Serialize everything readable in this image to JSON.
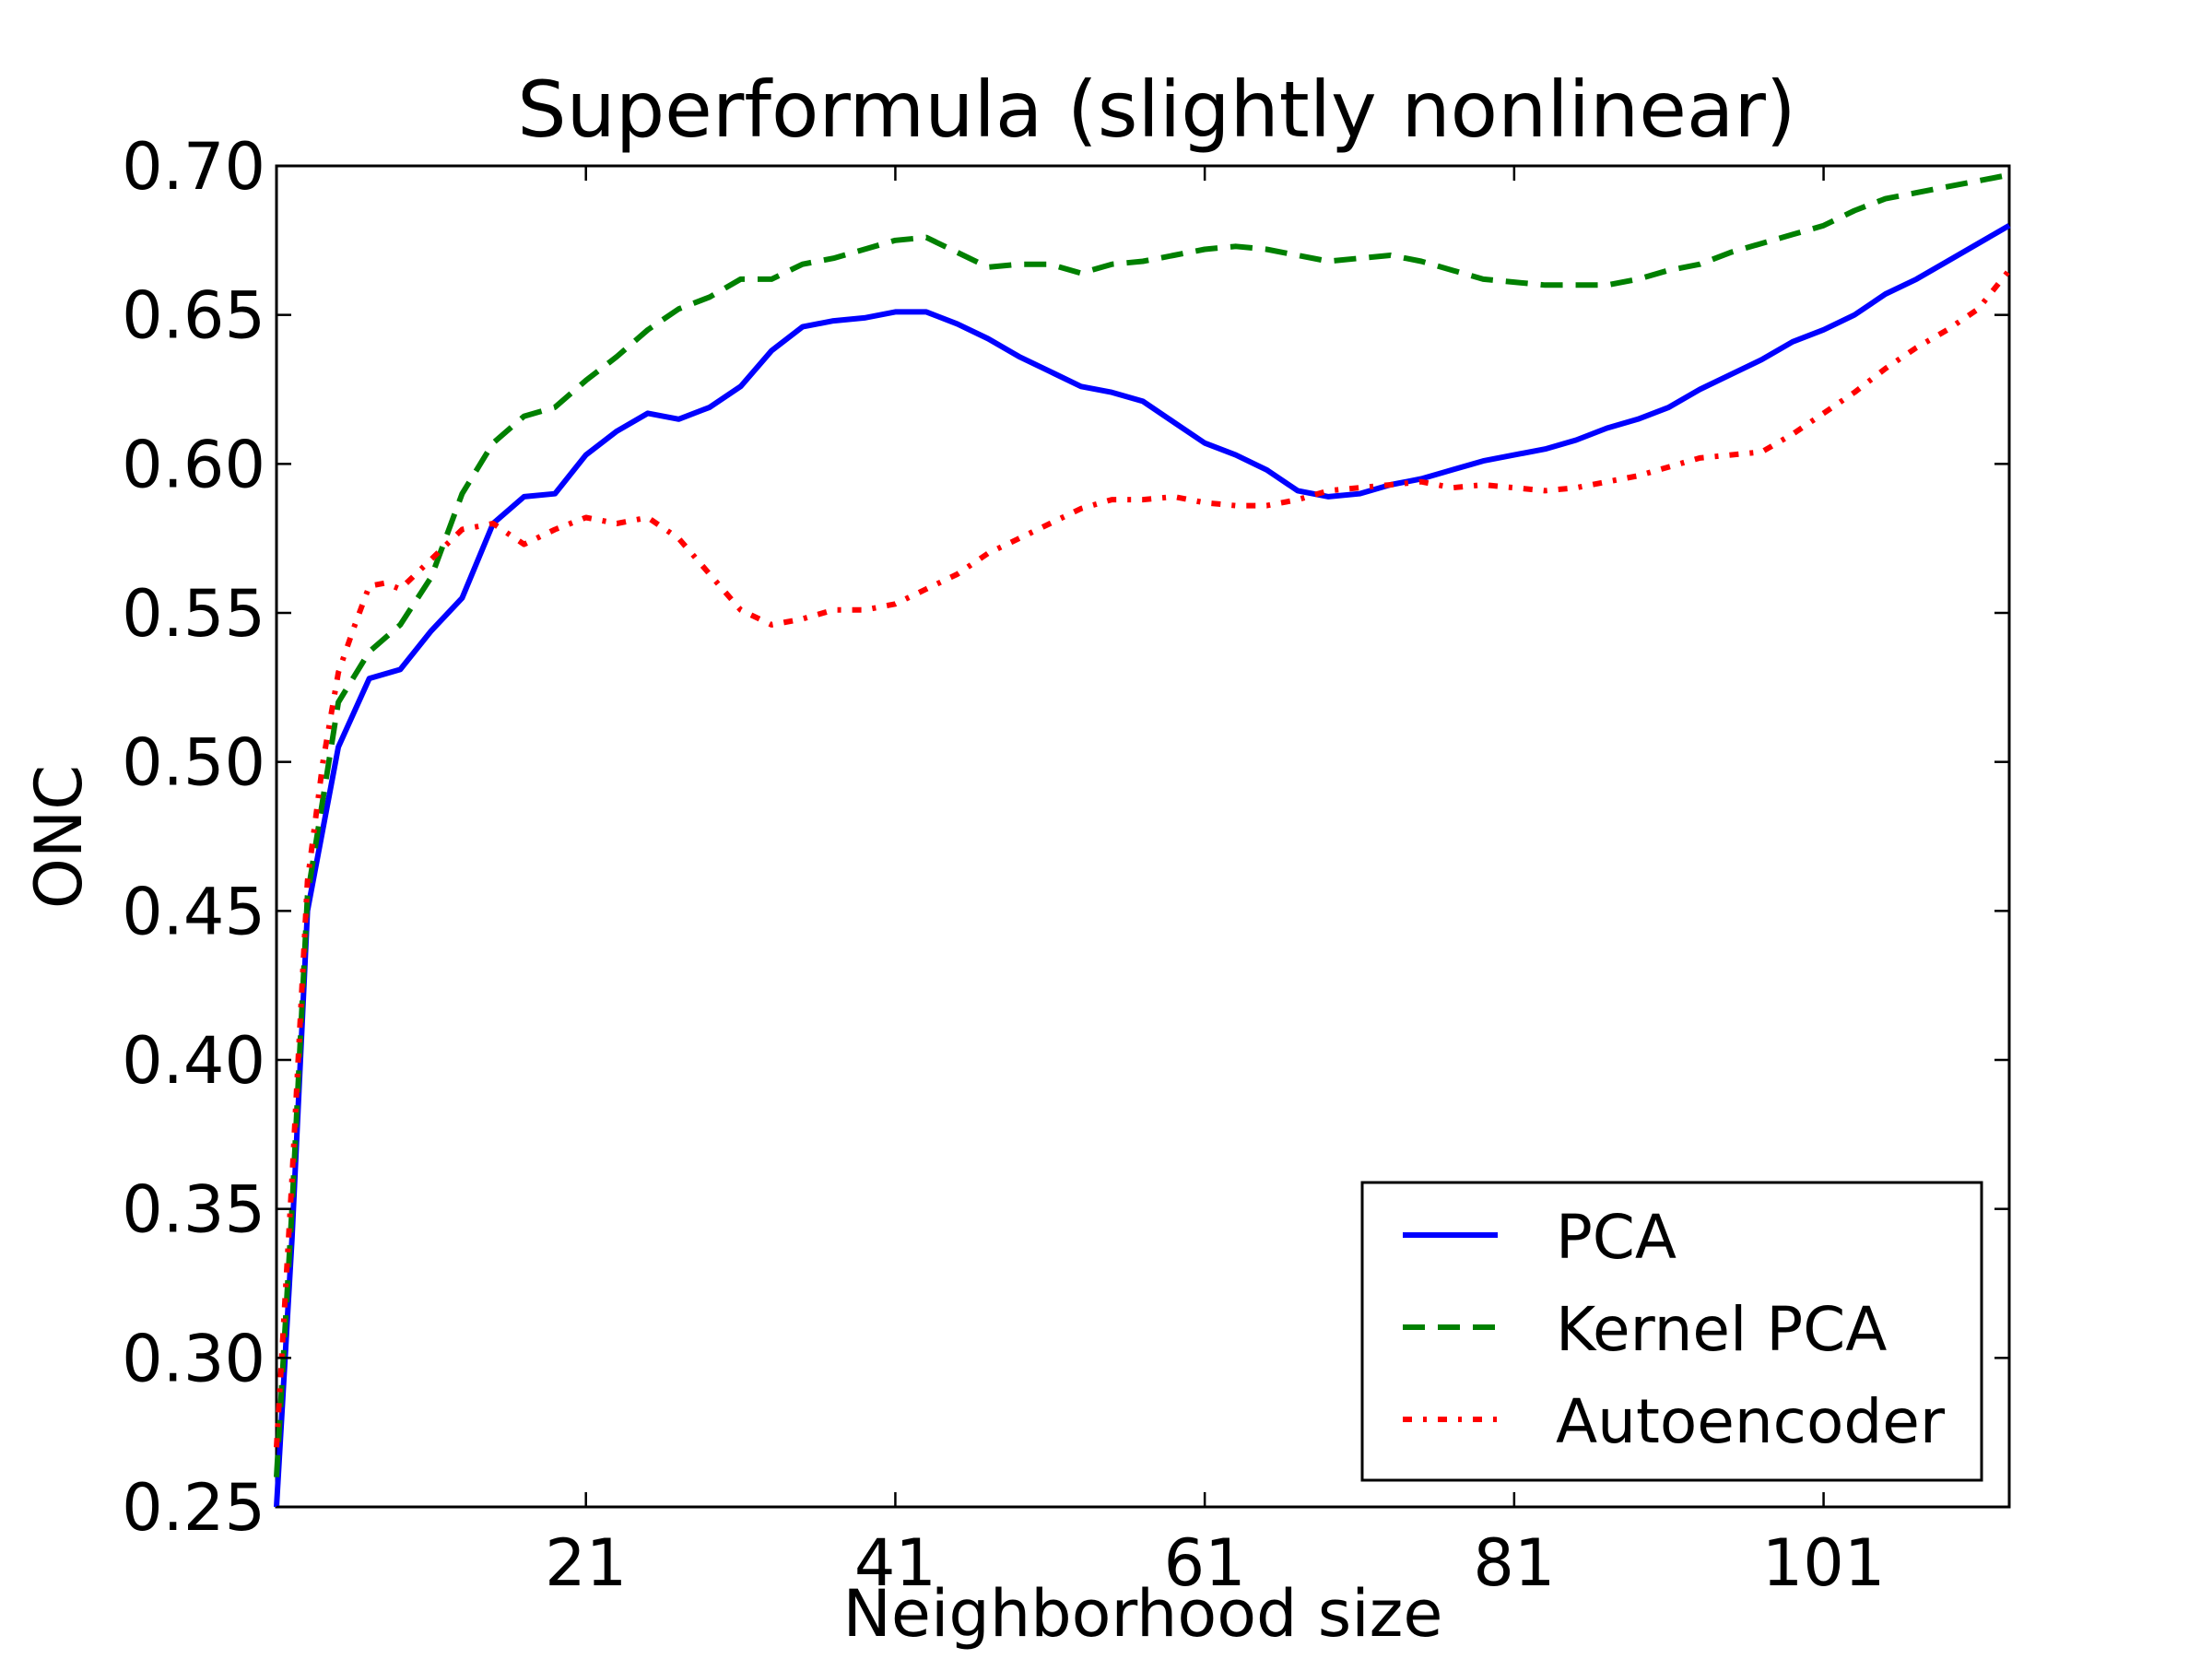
{
  "chart_data": {
    "type": "line",
    "title": "Superformula (slightly nonlinear)",
    "xlabel": "Neighborhood size",
    "ylabel": "ONC",
    "xlim": [
      1,
      113
    ],
    "ylim": [
      0.25,
      0.7
    ],
    "xticks": [
      21,
      41,
      61,
      81,
      101
    ],
    "yticks": [
      0.25,
      0.3,
      0.35,
      0.4,
      0.45,
      0.5,
      0.55,
      0.6,
      0.65,
      0.7
    ],
    "ytick_labels": [
      "0.25",
      "0.30",
      "0.35",
      "0.40",
      "0.45",
      "0.50",
      "0.55",
      "0.60",
      "0.65",
      "0.70"
    ],
    "xtick_labels": [
      "21",
      "41",
      "61",
      "81",
      "101"
    ],
    "grid": false,
    "legend_position": "lower-right",
    "series": [
      {
        "name": "PCA",
        "color": "#0000ff",
        "style": "solid",
        "points": [
          [
            1,
            0.25
          ],
          [
            2,
            0.34
          ],
          [
            3,
            0.45
          ],
          [
            5,
            0.505
          ],
          [
            7,
            0.528
          ],
          [
            9,
            0.531
          ],
          [
            11,
            0.544
          ],
          [
            13,
            0.555
          ],
          [
            15,
            0.58
          ],
          [
            17,
            0.589
          ],
          [
            19,
            0.59
          ],
          [
            21,
            0.603
          ],
          [
            23,
            0.611
          ],
          [
            25,
            0.617
          ],
          [
            27,
            0.615
          ],
          [
            29,
            0.619
          ],
          [
            31,
            0.626
          ],
          [
            33,
            0.638
          ],
          [
            35,
            0.646
          ],
          [
            37,
            0.648
          ],
          [
            39,
            0.649
          ],
          [
            41,
            0.651
          ],
          [
            43,
            0.651
          ],
          [
            45,
            0.647
          ],
          [
            47,
            0.642
          ],
          [
            49,
            0.636
          ],
          [
            51,
            0.631
          ],
          [
            53,
            0.626
          ],
          [
            55,
            0.624
          ],
          [
            57,
            0.621
          ],
          [
            59,
            0.614
          ],
          [
            61,
            0.607
          ],
          [
            63,
            0.603
          ],
          [
            65,
            0.598
          ],
          [
            67,
            0.591
          ],
          [
            69,
            0.589
          ],
          [
            71,
            0.59
          ],
          [
            73,
            0.593
          ],
          [
            75,
            0.595
          ],
          [
            77,
            0.598
          ],
          [
            79,
            0.601
          ],
          [
            81,
            0.603
          ],
          [
            83,
            0.605
          ],
          [
            85,
            0.608
          ],
          [
            87,
            0.612
          ],
          [
            89,
            0.615
          ],
          [
            91,
            0.619
          ],
          [
            93,
            0.625
          ],
          [
            95,
            0.63
          ],
          [
            97,
            0.635
          ],
          [
            99,
            0.641
          ],
          [
            101,
            0.645
          ],
          [
            103,
            0.65
          ],
          [
            105,
            0.657
          ],
          [
            107,
            0.662
          ],
          [
            109,
            0.668
          ],
          [
            111,
            0.674
          ],
          [
            113,
            0.68
          ]
        ]
      },
      {
        "name": "Kernel PCA",
        "color": "#008000",
        "style": "dashed",
        "points": [
          [
            1,
            0.26
          ],
          [
            2,
            0.35
          ],
          [
            3,
            0.455
          ],
          [
            5,
            0.52
          ],
          [
            7,
            0.537
          ],
          [
            9,
            0.546
          ],
          [
            11,
            0.562
          ],
          [
            13,
            0.59
          ],
          [
            15,
            0.607
          ],
          [
            17,
            0.616
          ],
          [
            19,
            0.619
          ],
          [
            21,
            0.628
          ],
          [
            23,
            0.636
          ],
          [
            25,
            0.645
          ],
          [
            27,
            0.652
          ],
          [
            29,
            0.656
          ],
          [
            31,
            0.662
          ],
          [
            33,
            0.662
          ],
          [
            35,
            0.667
          ],
          [
            37,
            0.669
          ],
          [
            39,
            0.672
          ],
          [
            41,
            0.675
          ],
          [
            43,
            0.676
          ],
          [
            45,
            0.671
          ],
          [
            47,
            0.666
          ],
          [
            49,
            0.667
          ],
          [
            51,
            0.667
          ],
          [
            53,
            0.664
          ],
          [
            55,
            0.667
          ],
          [
            57,
            0.668
          ],
          [
            59,
            0.67
          ],
          [
            61,
            0.672
          ],
          [
            63,
            0.673
          ],
          [
            65,
            0.672
          ],
          [
            67,
            0.67
          ],
          [
            69,
            0.668
          ],
          [
            71,
            0.669
          ],
          [
            73,
            0.67
          ],
          [
            75,
            0.668
          ],
          [
            77,
            0.665
          ],
          [
            79,
            0.662
          ],
          [
            81,
            0.661
          ],
          [
            83,
            0.66
          ],
          [
            85,
            0.66
          ],
          [
            87,
            0.66
          ],
          [
            89,
            0.662
          ],
          [
            91,
            0.665
          ],
          [
            93,
            0.667
          ],
          [
            95,
            0.671
          ],
          [
            97,
            0.674
          ],
          [
            99,
            0.677
          ],
          [
            101,
            0.68
          ],
          [
            103,
            0.685
          ],
          [
            105,
            0.689
          ],
          [
            107,
            0.691
          ],
          [
            109,
            0.693
          ],
          [
            111,
            0.695
          ],
          [
            113,
            0.697
          ]
        ]
      },
      {
        "name": "Autoencoder",
        "color": "#ff0000",
        "style": "dashdot",
        "points": [
          [
            1,
            0.27
          ],
          [
            2,
            0.36
          ],
          [
            3,
            0.46
          ],
          [
            4,
            0.5
          ],
          [
            5,
            0.53
          ],
          [
            6,
            0.545
          ],
          [
            7,
            0.559
          ],
          [
            8,
            0.56
          ],
          [
            9,
            0.558
          ],
          [
            11,
            0.568
          ],
          [
            13,
            0.578
          ],
          [
            15,
            0.58
          ],
          [
            17,
            0.573
          ],
          [
            19,
            0.578
          ],
          [
            21,
            0.582
          ],
          [
            23,
            0.58
          ],
          [
            25,
            0.582
          ],
          [
            27,
            0.575
          ],
          [
            29,
            0.563
          ],
          [
            31,
            0.551
          ],
          [
            33,
            0.546
          ],
          [
            35,
            0.548
          ],
          [
            37,
            0.551
          ],
          [
            39,
            0.551
          ],
          [
            41,
            0.553
          ],
          [
            43,
            0.558
          ],
          [
            45,
            0.563
          ],
          [
            47,
            0.57
          ],
          [
            49,
            0.575
          ],
          [
            51,
            0.58
          ],
          [
            53,
            0.585
          ],
          [
            55,
            0.588
          ],
          [
            57,
            0.588
          ],
          [
            59,
            0.589
          ],
          [
            61,
            0.587
          ],
          [
            63,
            0.586
          ],
          [
            65,
            0.586
          ],
          [
            67,
            0.588
          ],
          [
            69,
            0.591
          ],
          [
            71,
            0.592
          ],
          [
            73,
            0.593
          ],
          [
            75,
            0.594
          ],
          [
            77,
            0.592
          ],
          [
            79,
            0.593
          ],
          [
            81,
            0.592
          ],
          [
            83,
            0.591
          ],
          [
            85,
            0.592
          ],
          [
            87,
            0.594
          ],
          [
            89,
            0.596
          ],
          [
            91,
            0.599
          ],
          [
            93,
            0.602
          ],
          [
            95,
            0.603
          ],
          [
            97,
            0.604
          ],
          [
            99,
            0.61
          ],
          [
            101,
            0.617
          ],
          [
            103,
            0.624
          ],
          [
            105,
            0.632
          ],
          [
            107,
            0.639
          ],
          [
            109,
            0.645
          ],
          [
            111,
            0.652
          ],
          [
            113,
            0.665
          ]
        ]
      }
    ]
  }
}
